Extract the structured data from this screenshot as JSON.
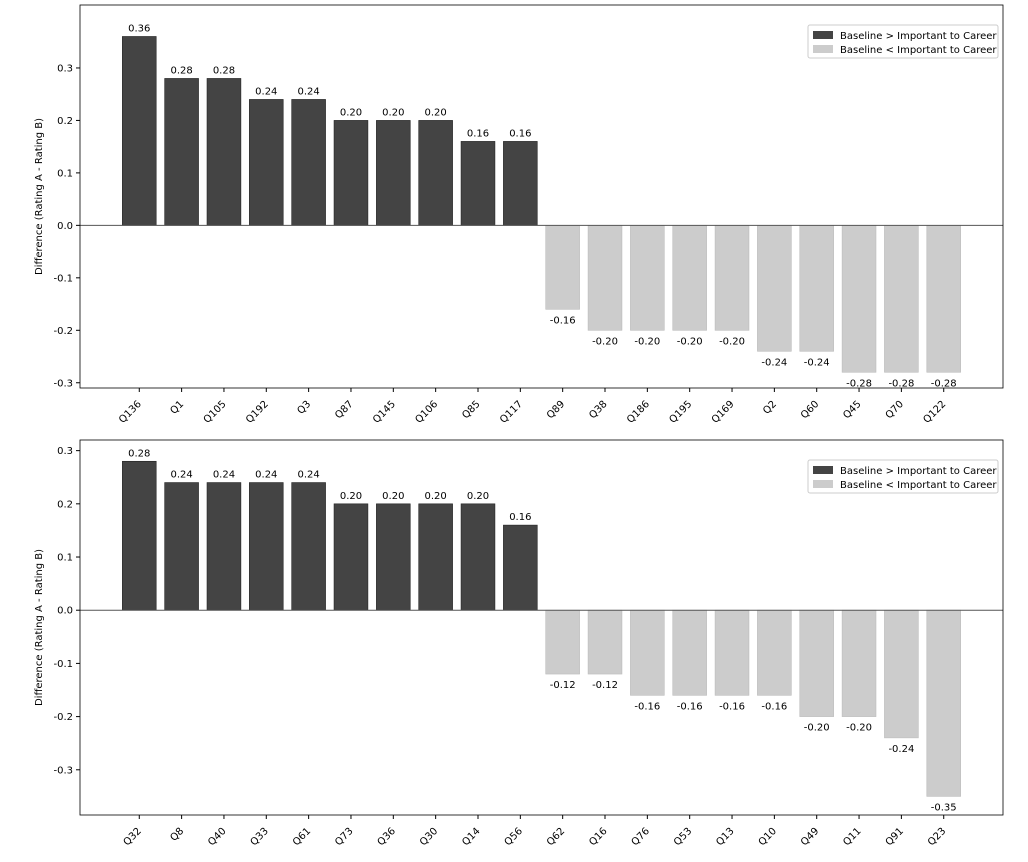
{
  "colors": {
    "positive": "#444444",
    "negative": "#cccccc"
  },
  "chart_data": [
    {
      "type": "bar",
      "ylabel": "Difference (Rating A - Rating B)",
      "xlabel": "",
      "ylim": [
        -0.31,
        0.42
      ],
      "yticks": [
        -0.3,
        -0.2,
        -0.1,
        0.0,
        0.1,
        0.2,
        0.3
      ],
      "ytick_labels": [
        "-0.3",
        "-0.2",
        "-0.1",
        "0.0",
        "0.1",
        "0.2",
        "0.3"
      ],
      "legend": [
        "Baseline > Important to Career",
        "Baseline < Important to Career"
      ],
      "legend_position": "top-right",
      "categories": [
        "Q136",
        "Q1",
        "Q105",
        "Q192",
        "Q3",
        "Q87",
        "Q145",
        "Q106",
        "Q85",
        "Q117",
        "Q89",
        "Q38",
        "Q186",
        "Q195",
        "Q169",
        "Q2",
        "Q60",
        "Q45",
        "Q70",
        "Q122"
      ],
      "values": [
        0.36,
        0.28,
        0.28,
        0.24,
        0.24,
        0.2,
        0.2,
        0.2,
        0.16,
        0.16,
        -0.16,
        -0.2,
        -0.2,
        -0.2,
        -0.2,
        -0.24,
        -0.24,
        -0.28,
        -0.28,
        -0.28
      ],
      "data_labels": [
        "0.36",
        "0.28",
        "0.28",
        "0.24",
        "0.24",
        "0.20",
        "0.20",
        "0.20",
        "0.16",
        "0.16",
        "-0.16",
        "-0.20",
        "-0.20",
        "-0.20",
        "-0.20",
        "-0.24",
        "-0.24",
        "-0.28",
        "-0.28",
        "-0.28"
      ]
    },
    {
      "type": "bar",
      "ylabel": "Difference (Rating A - Rating B)",
      "xlabel": "",
      "ylim": [
        -0.385,
        0.32
      ],
      "yticks": [
        -0.3,
        -0.2,
        -0.1,
        0.0,
        0.1,
        0.2,
        0.3
      ],
      "ytick_labels": [
        "-0.3",
        "-0.2",
        "-0.1",
        "0.0",
        "0.1",
        "0.2",
        "0.3"
      ],
      "legend": [
        "Baseline > Important to Career",
        "Baseline < Important to Career"
      ],
      "legend_position": "top-right",
      "categories": [
        "Q32",
        "Q8",
        "Q40",
        "Q33",
        "Q61",
        "Q73",
        "Q36",
        "Q30",
        "Q14",
        "Q56",
        "Q62",
        "Q16",
        "Q76",
        "Q53",
        "Q13",
        "Q10",
        "Q49",
        "Q11",
        "Q91",
        "Q23"
      ],
      "values": [
        0.28,
        0.24,
        0.24,
        0.24,
        0.24,
        0.2,
        0.2,
        0.2,
        0.2,
        0.16,
        -0.12,
        -0.12,
        -0.16,
        -0.16,
        -0.16,
        -0.16,
        -0.2,
        -0.2,
        -0.24,
        -0.35
      ],
      "data_labels": [
        "0.28",
        "0.24",
        "0.24",
        "0.24",
        "0.24",
        "0.20",
        "0.20",
        "0.20",
        "0.20",
        "0.16",
        "-0.12",
        "-0.12",
        "-0.16",
        "-0.16",
        "-0.16",
        "-0.16",
        "-0.20",
        "-0.20",
        "-0.24",
        "-0.35"
      ]
    }
  ]
}
